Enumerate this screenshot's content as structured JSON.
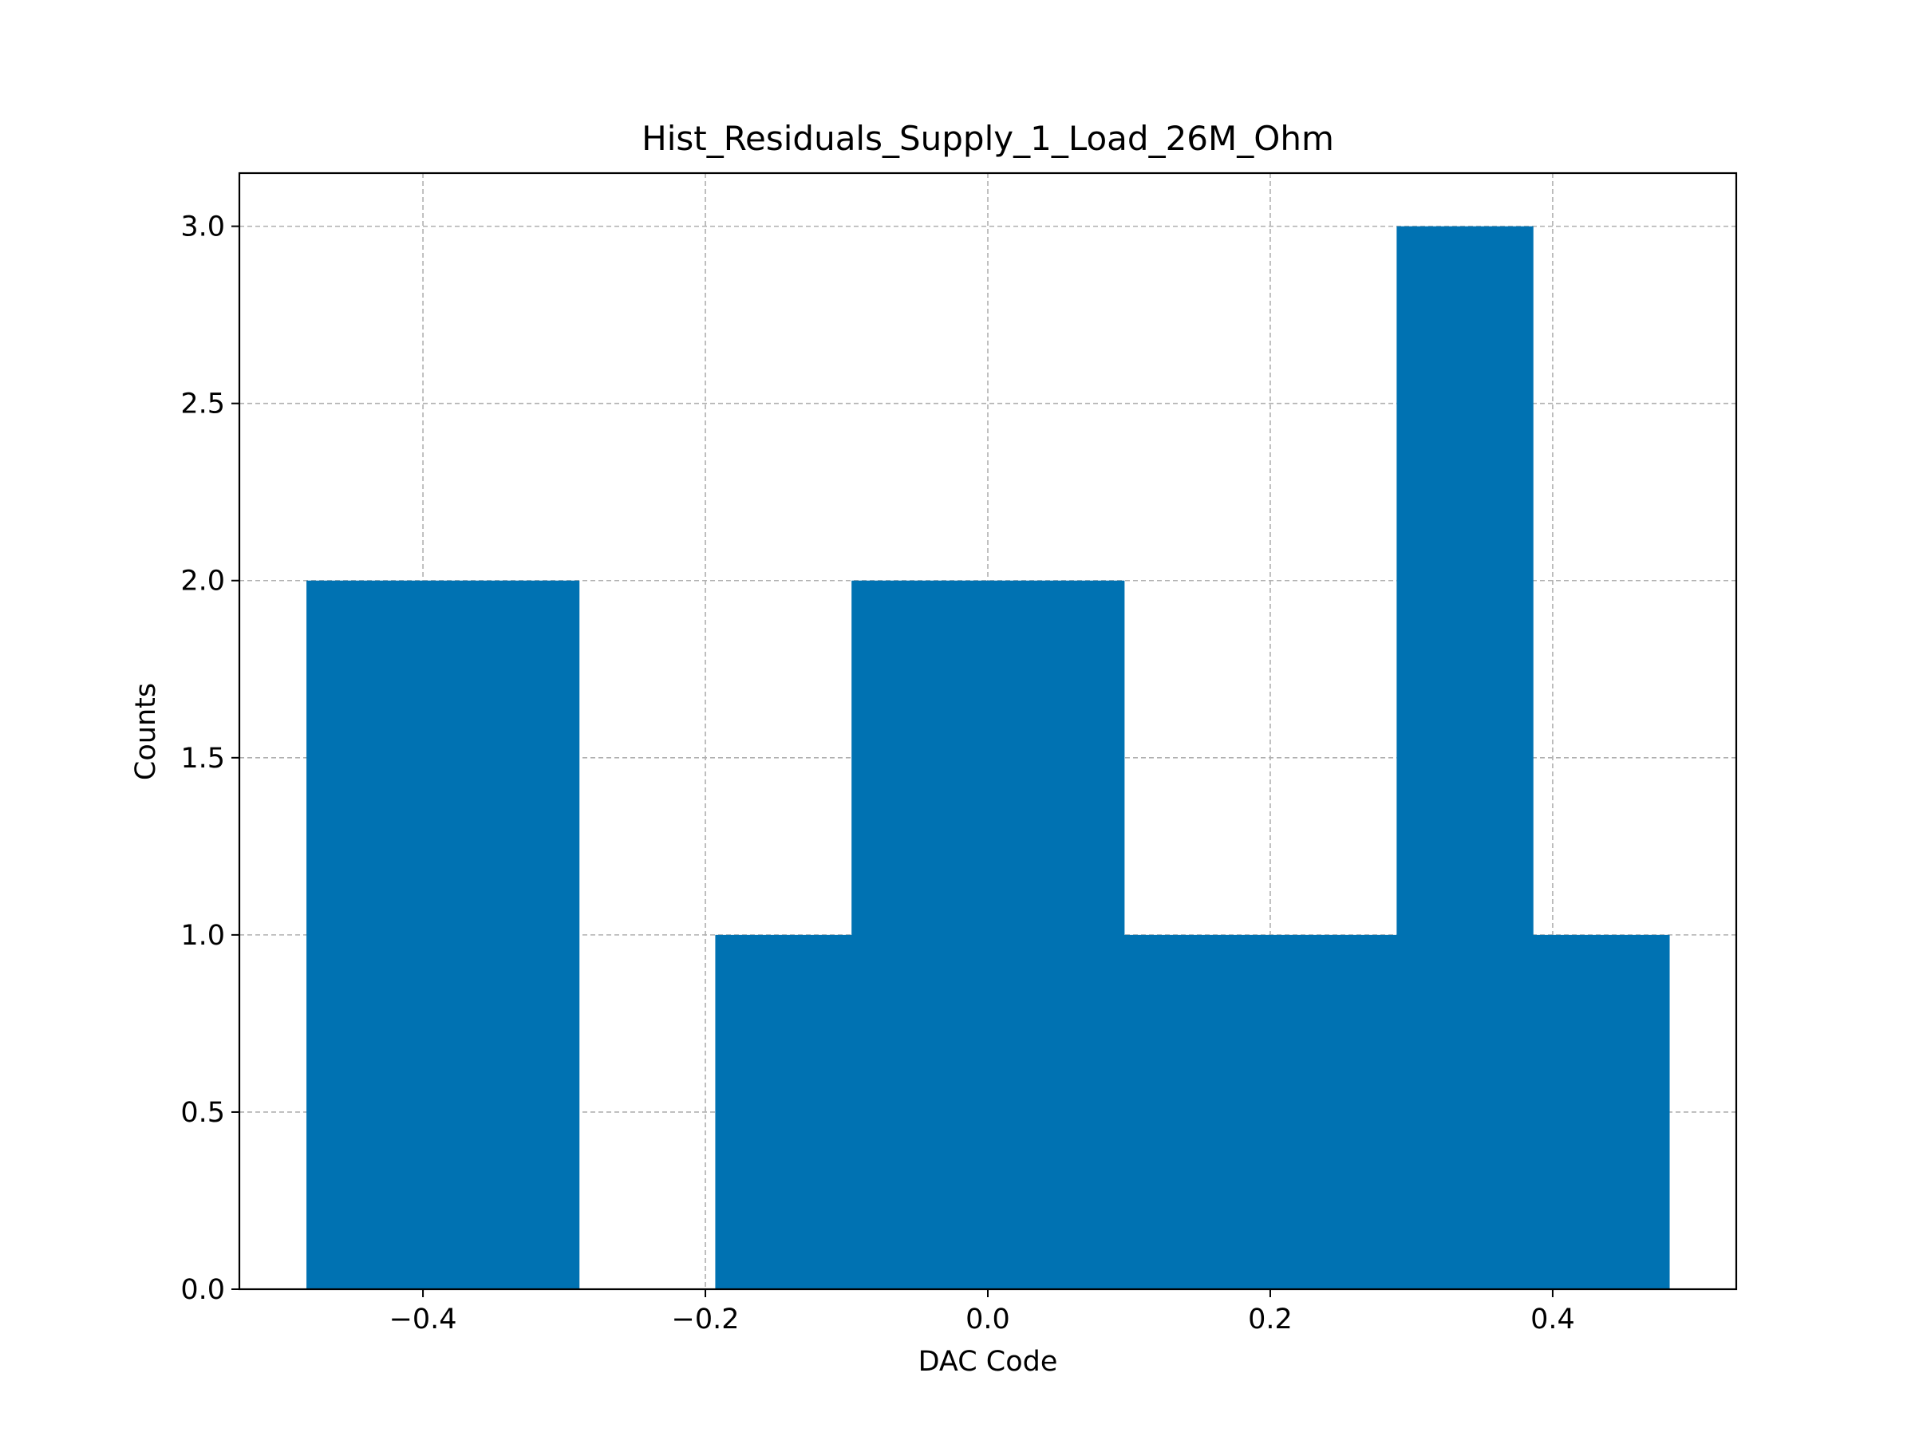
{
  "chart_data": {
    "type": "bar",
    "title": "Hist_Residuals_Supply_1_Load_26M_Ohm",
    "xlabel": "DAC Code",
    "ylabel": "Counts",
    "xlim": [
      -0.53,
      0.53
    ],
    "ylim": [
      0,
      3.15
    ],
    "grid": true,
    "legend": "none",
    "bar_color": "#0072b2",
    "x_ticks": [
      {
        "value": -0.4,
        "label": "−0.4"
      },
      {
        "value": -0.2,
        "label": "−0.2"
      },
      {
        "value": 0.0,
        "label": "0.0"
      },
      {
        "value": 0.2,
        "label": "0.2"
      },
      {
        "value": 0.4,
        "label": "0.4"
      }
    ],
    "y_ticks": [
      {
        "value": 0.0,
        "label": "0.0"
      },
      {
        "value": 0.5,
        "label": "0.5"
      },
      {
        "value": 1.0,
        "label": "1.0"
      },
      {
        "value": 1.5,
        "label": "1.5"
      },
      {
        "value": 2.0,
        "label": "2.0"
      },
      {
        "value": 2.5,
        "label": "2.5"
      },
      {
        "value": 3.0,
        "label": "3.0"
      }
    ],
    "bins": [
      {
        "start": -0.4825,
        "end": -0.386,
        "count": 2
      },
      {
        "start": -0.386,
        "end": -0.2895,
        "count": 2
      },
      {
        "start": -0.2895,
        "end": -0.193,
        "count": 0
      },
      {
        "start": -0.193,
        "end": -0.0965,
        "count": 1
      },
      {
        "start": -0.0965,
        "end": 0.0,
        "count": 2
      },
      {
        "start": 0.0,
        "end": 0.0965,
        "count": 2
      },
      {
        "start": 0.0965,
        "end": 0.193,
        "count": 1
      },
      {
        "start": 0.193,
        "end": 0.2895,
        "count": 1
      },
      {
        "start": 0.2895,
        "end": 0.386,
        "count": 3
      },
      {
        "start": 0.386,
        "end": 0.4825,
        "count": 1
      }
    ]
  }
}
